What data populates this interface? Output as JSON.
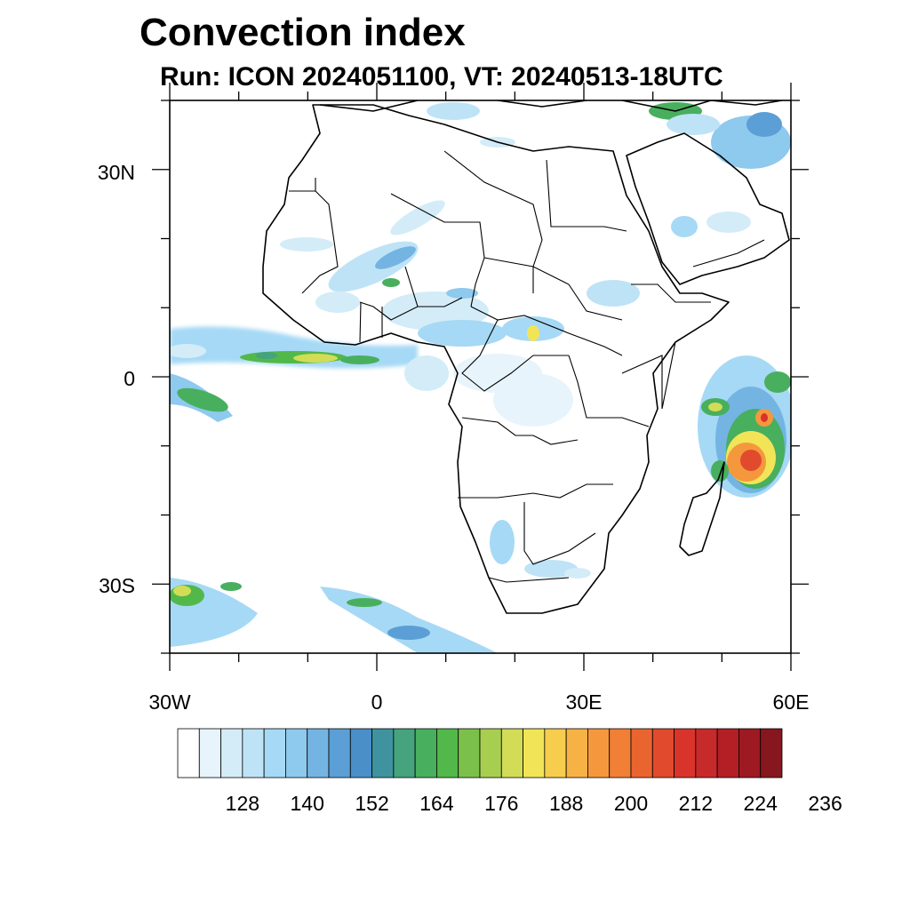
{
  "title": "Convection index",
  "subtitle": "Run: ICON 2024051100,  VT: 20240513-18UTC",
  "map": {
    "region": "Africa",
    "lon_range": [
      -30,
      60
    ],
    "lat_range": [
      -40,
      40
    ],
    "lat_ticks": [
      {
        "value": 30,
        "label": "30N"
      },
      {
        "value": 0,
        "label": "0"
      },
      {
        "value": -30,
        "label": "30S"
      }
    ],
    "lon_ticks": [
      {
        "value": -30,
        "label": "30W"
      },
      {
        "value": 0,
        "label": "0"
      },
      {
        "value": 30,
        "label": "30E"
      },
      {
        "value": 60,
        "label": "60E"
      }
    ]
  },
  "colorbar": {
    "colors": [
      "#ffffff",
      "#e8f4fb",
      "#d3ecf8",
      "#bfe3f6",
      "#a6d9f5",
      "#8ec9ee",
      "#74b4e3",
      "#5b9fd6",
      "#4b8fc8",
      "#3f939f",
      "#45a37d",
      "#48af5e",
      "#52b84a",
      "#7cc04c",
      "#a8ce50",
      "#d3dc56",
      "#f1e557",
      "#f7cd4e",
      "#f6b245",
      "#f5983d",
      "#f17f36",
      "#ea6430",
      "#e14a2c",
      "#d8342b",
      "#c72a2b",
      "#b41f26",
      "#9e1a22",
      "#87171f"
    ],
    "labels": [
      "128",
      "140",
      "152",
      "164",
      "176",
      "188",
      "200",
      "212",
      "224",
      "236"
    ]
  }
}
